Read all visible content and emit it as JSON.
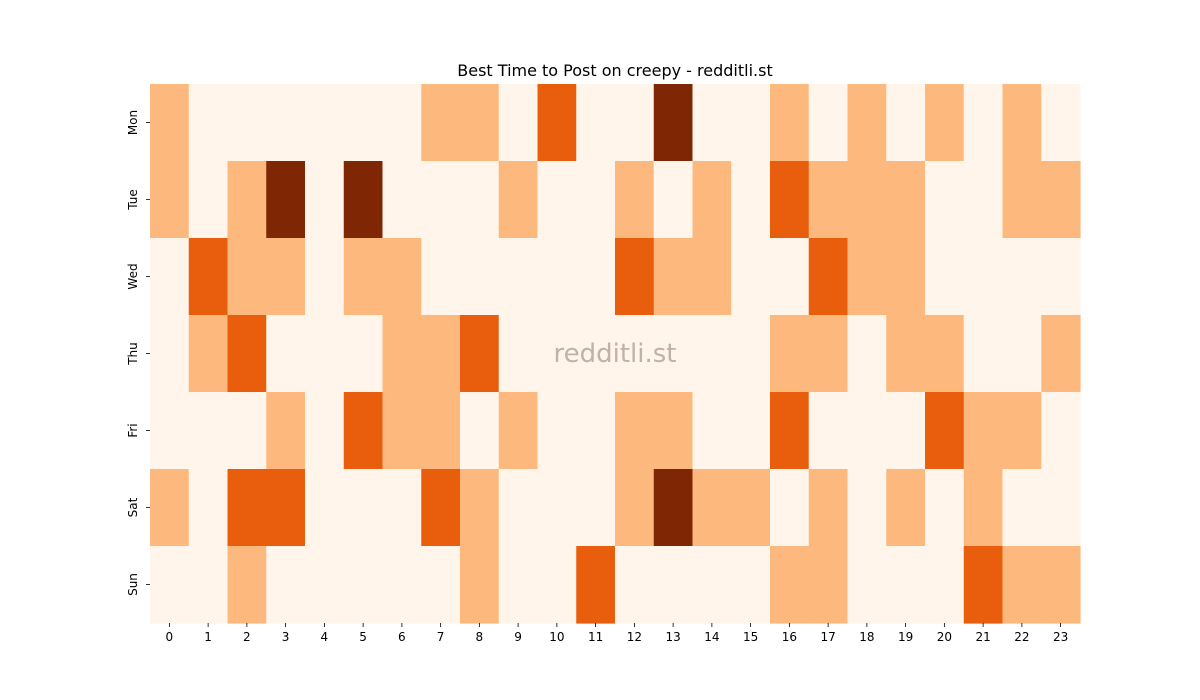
{
  "chart_data": {
    "type": "heatmap",
    "title": "Best Time to Post on creepy - redditli.st",
    "watermark": "redditli.st",
    "xlabel": "",
    "ylabel": "",
    "x_labels": [
      "0",
      "1",
      "2",
      "3",
      "4",
      "5",
      "6",
      "7",
      "8",
      "9",
      "10",
      "11",
      "12",
      "13",
      "14",
      "15",
      "16",
      "17",
      "18",
      "19",
      "20",
      "21",
      "22",
      "23"
    ],
    "y_labels": [
      "Mon",
      "Tue",
      "Wed",
      "Thu",
      "Fri",
      "Sat",
      "Sun"
    ],
    "levels": 4,
    "grid": false,
    "colorbar": false,
    "colors": [
      "#fff5eb",
      "#fdb97d",
      "#e95e0d",
      "#7f2704"
    ],
    "values": [
      [
        1,
        0,
        0,
        0,
        0,
        0,
        0,
        1,
        1,
        0,
        2,
        0,
        0,
        3,
        0,
        0,
        1,
        0,
        1,
        0,
        1,
        0,
        1,
        0
      ],
      [
        1,
        0,
        1,
        3,
        0,
        3,
        0,
        0,
        0,
        1,
        0,
        0,
        1,
        0,
        1,
        0,
        2,
        1,
        1,
        1,
        0,
        0,
        1,
        1
      ],
      [
        0,
        2,
        1,
        1,
        0,
        1,
        1,
        0,
        0,
        0,
        0,
        0,
        2,
        1,
        1,
        0,
        0,
        2,
        1,
        1,
        0,
        0,
        0,
        0
      ],
      [
        0,
        1,
        2,
        0,
        0,
        0,
        1,
        1,
        2,
        0,
        0,
        0,
        0,
        0,
        0,
        0,
        1,
        1,
        0,
        1,
        1,
        0,
        0,
        1
      ],
      [
        0,
        0,
        0,
        1,
        0,
        2,
        1,
        1,
        0,
        1,
        0,
        0,
        1,
        1,
        0,
        0,
        2,
        0,
        0,
        0,
        2,
        1,
        1,
        0
      ],
      [
        1,
        0,
        2,
        2,
        0,
        0,
        0,
        2,
        1,
        0,
        0,
        0,
        1,
        3,
        1,
        1,
        0,
        1,
        0,
        1,
        0,
        1,
        0,
        0
      ],
      [
        0,
        0,
        1,
        0,
        0,
        0,
        0,
        0,
        1,
        0,
        0,
        2,
        0,
        0,
        0,
        0,
        1,
        1,
        0,
        0,
        0,
        2,
        1,
        1
      ]
    ]
  }
}
